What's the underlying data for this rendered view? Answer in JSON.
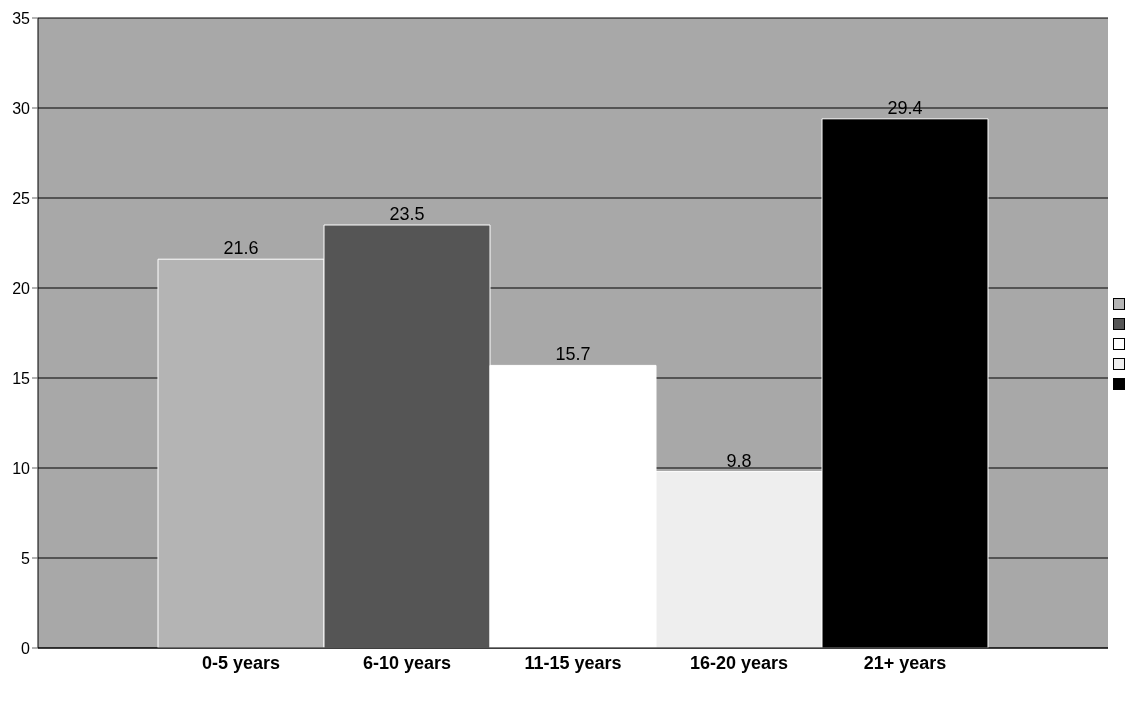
{
  "chart_data": {
    "type": "bar",
    "categories": [
      "0-5 years",
      "6-10 years",
      "11-15 years",
      "16-20 years",
      "21+ years"
    ],
    "values": [
      21.6,
      23.5,
      15.7,
      9.8,
      29.4
    ],
    "colors": [
      "#b4b4b4",
      "#555555",
      "#ffffff",
      "#eeeeee",
      "#000000"
    ],
    "ylim": [
      0,
      35
    ],
    "yticks": [
      0,
      5,
      10,
      15,
      20,
      25,
      30,
      35
    ],
    "grid": "y",
    "data_labels": true
  }
}
